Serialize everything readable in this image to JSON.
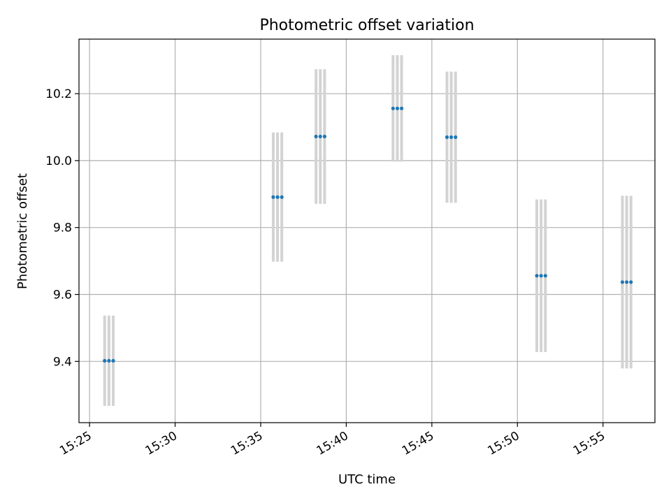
{
  "chart_data": {
    "type": "scatter",
    "title": "Photometric offset variation",
    "xlabel": "UTC time",
    "ylabel": "Photometric offset",
    "x_ticks": [
      "15:25",
      "15:30",
      "15:35",
      "15:40",
      "15:45",
      "15:50",
      "15:55"
    ],
    "y_ticks": [
      "9.4",
      "9.6",
      "9.8",
      "10.0",
      "10.2"
    ],
    "xlim": [
      "15:24:23",
      "15:58:02"
    ],
    "ylim": [
      9.217,
      10.363
    ],
    "grid": true,
    "points": [
      {
        "t": "15:25:53",
        "y": 9.402,
        "err": 0.135
      },
      {
        "t": "15:26:08",
        "y": 9.402,
        "err": 0.135
      },
      {
        "t": "15:26:23",
        "y": 9.402,
        "err": 0.135
      },
      {
        "t": "15:35:44",
        "y": 9.891,
        "err": 0.193
      },
      {
        "t": "15:35:59",
        "y": 9.891,
        "err": 0.193
      },
      {
        "t": "15:36:14",
        "y": 9.891,
        "err": 0.193
      },
      {
        "t": "15:38:14",
        "y": 10.072,
        "err": 0.201
      },
      {
        "t": "15:38:29",
        "y": 10.072,
        "err": 0.201
      },
      {
        "t": "15:38:44",
        "y": 10.072,
        "err": 0.201
      },
      {
        "t": "15:42:44",
        "y": 10.156,
        "err": 0.159
      },
      {
        "t": "15:42:59",
        "y": 10.156,
        "err": 0.159
      },
      {
        "t": "15:43:14",
        "y": 10.156,
        "err": 0.159
      },
      {
        "t": "15:45:53",
        "y": 10.07,
        "err": 0.196
      },
      {
        "t": "15:46:08",
        "y": 10.07,
        "err": 0.196
      },
      {
        "t": "15:46:23",
        "y": 10.07,
        "err": 0.196
      },
      {
        "t": "15:51:08",
        "y": 9.656,
        "err": 0.228
      },
      {
        "t": "15:51:23",
        "y": 9.656,
        "err": 0.228
      },
      {
        "t": "15:51:38",
        "y": 9.656,
        "err": 0.228
      },
      {
        "t": "15:56:08",
        "y": 9.637,
        "err": 0.258
      },
      {
        "t": "15:56:23",
        "y": 9.637,
        "err": 0.258
      },
      {
        "t": "15:56:38",
        "y": 9.637,
        "err": 0.258
      }
    ],
    "colors": {
      "points": "#1f77b4",
      "error_bars": "#d3d3d3",
      "grid": "#b0b0b0",
      "axes": "#000000"
    }
  }
}
